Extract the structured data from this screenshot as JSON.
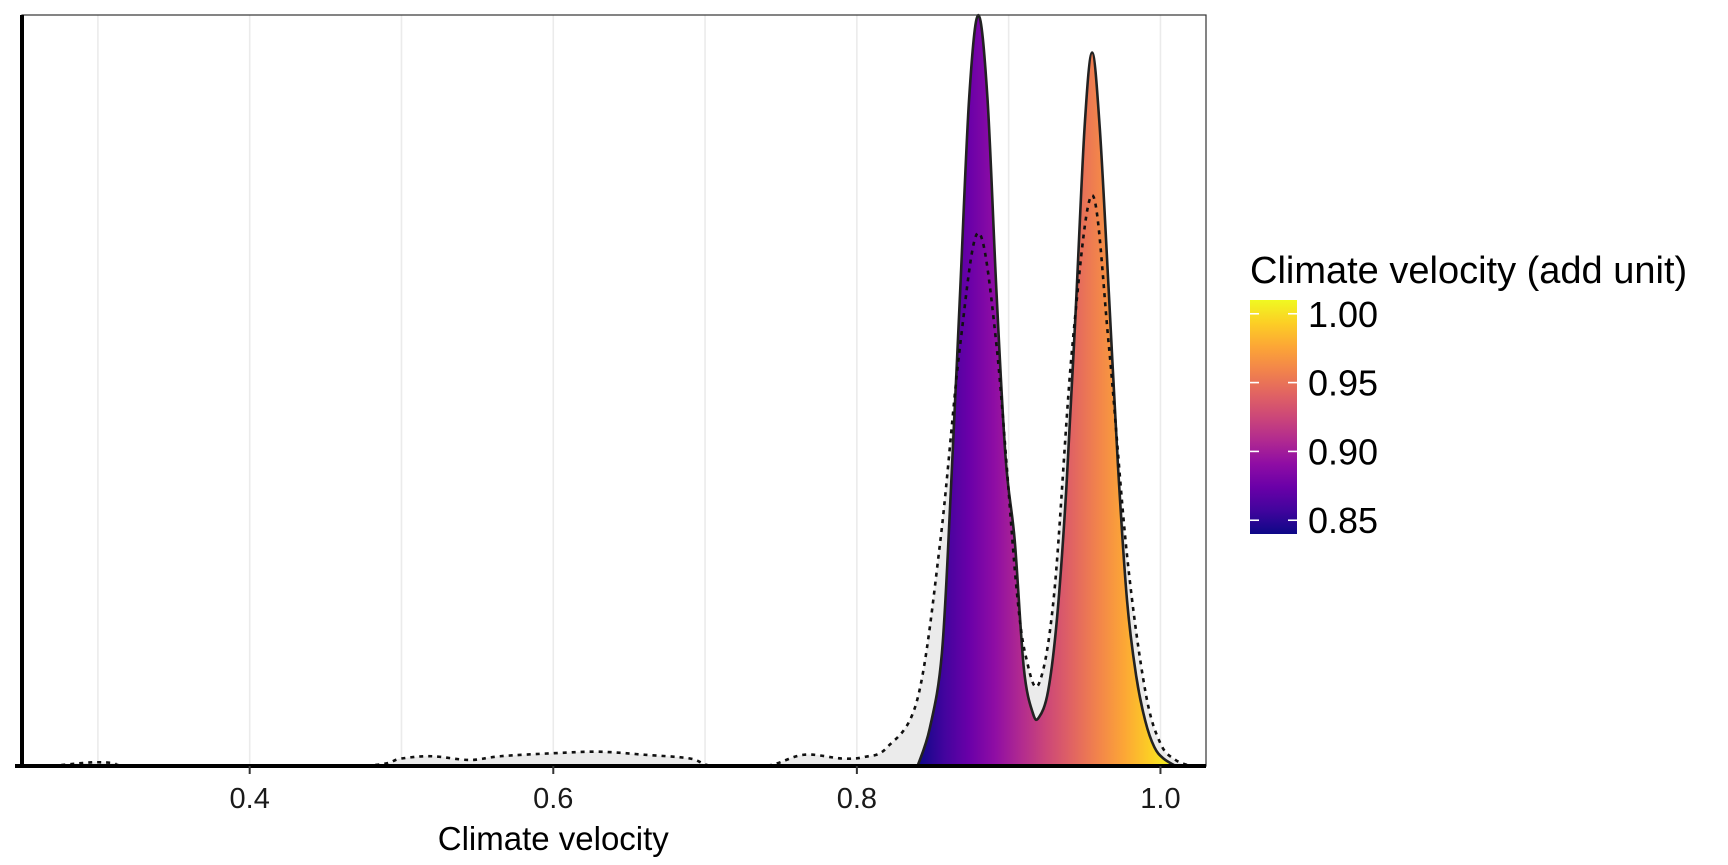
{
  "chart_data": {
    "type": "area",
    "xlabel": "Climate velocity",
    "ylabel": "",
    "xlim": [
      0.25,
      1.03
    ],
    "ylim": [
      0,
      1
    ],
    "x_ticks": [
      0.4,
      0.6,
      0.8,
      1.0
    ],
    "x_tick_labels": [
      "0.4",
      "0.6",
      "0.8",
      "1.0"
    ],
    "grid": "vertical",
    "series": [
      {
        "style": "filled-gradient-solid-outline",
        "x_range": [
          0.84,
          1.01
        ],
        "points": [
          {
            "x": 0.84,
            "y": 0.0
          },
          {
            "x": 0.848,
            "y": 0.05
          },
          {
            "x": 0.856,
            "y": 0.15
          },
          {
            "x": 0.862,
            "y": 0.37
          },
          {
            "x": 0.868,
            "y": 0.63
          },
          {
            "x": 0.874,
            "y": 0.89
          },
          {
            "x": 0.88,
            "y": 1.0
          },
          {
            "x": 0.886,
            "y": 0.89
          },
          {
            "x": 0.892,
            "y": 0.63
          },
          {
            "x": 0.898,
            "y": 0.41
          },
          {
            "x": 0.904,
            "y": 0.3
          },
          {
            "x": 0.91,
            "y": 0.13
          },
          {
            "x": 0.916,
            "y": 0.07
          },
          {
            "x": 0.92,
            "y": 0.065
          },
          {
            "x": 0.926,
            "y": 0.1
          },
          {
            "x": 0.932,
            "y": 0.2
          },
          {
            "x": 0.938,
            "y": 0.37
          },
          {
            "x": 0.944,
            "y": 0.6
          },
          {
            "x": 0.95,
            "y": 0.85
          },
          {
            "x": 0.955,
            "y": 0.95
          },
          {
            "x": 0.96,
            "y": 0.85
          },
          {
            "x": 0.966,
            "y": 0.63
          },
          {
            "x": 0.972,
            "y": 0.4
          },
          {
            "x": 0.978,
            "y": 0.22
          },
          {
            "x": 0.984,
            "y": 0.12
          },
          {
            "x": 0.99,
            "y": 0.06
          },
          {
            "x": 0.996,
            "y": 0.025
          },
          {
            "x": 1.002,
            "y": 0.01
          },
          {
            "x": 1.01,
            "y": 0.0
          }
        ]
      },
      {
        "style": "dotted-outline-grey-fill",
        "x_range": [
          0.27,
          1.02
        ],
        "points": [
          {
            "x": 0.27,
            "y": 0.0
          },
          {
            "x": 0.29,
            "y": 0.004
          },
          {
            "x": 0.3,
            "y": 0.005
          },
          {
            "x": 0.31,
            "y": 0.004
          },
          {
            "x": 0.33,
            "y": 0.0
          },
          {
            "x": 0.47,
            "y": 0.0
          },
          {
            "x": 0.5,
            "y": 0.01
          },
          {
            "x": 0.52,
            "y": 0.013
          },
          {
            "x": 0.545,
            "y": 0.008
          },
          {
            "x": 0.565,
            "y": 0.013
          },
          {
            "x": 0.6,
            "y": 0.017
          },
          {
            "x": 0.63,
            "y": 0.019
          },
          {
            "x": 0.66,
            "y": 0.015
          },
          {
            "x": 0.69,
            "y": 0.01
          },
          {
            "x": 0.705,
            "y": 0.0
          },
          {
            "x": 0.74,
            "y": 0.0
          },
          {
            "x": 0.765,
            "y": 0.015
          },
          {
            "x": 0.79,
            "y": 0.01
          },
          {
            "x": 0.805,
            "y": 0.012
          },
          {
            "x": 0.82,
            "y": 0.025
          },
          {
            "x": 0.84,
            "y": 0.09
          },
          {
            "x": 0.855,
            "y": 0.3
          },
          {
            "x": 0.868,
            "y": 0.56
          },
          {
            "x": 0.88,
            "y": 0.71
          },
          {
            "x": 0.892,
            "y": 0.56
          },
          {
            "x": 0.905,
            "y": 0.24
          },
          {
            "x": 0.912,
            "y": 0.14
          },
          {
            "x": 0.92,
            "y": 0.11
          },
          {
            "x": 0.93,
            "y": 0.23
          },
          {
            "x": 0.942,
            "y": 0.56
          },
          {
            "x": 0.955,
            "y": 0.76
          },
          {
            "x": 0.966,
            "y": 0.56
          },
          {
            "x": 0.978,
            "y": 0.28
          },
          {
            "x": 0.99,
            "y": 0.1
          },
          {
            "x": 1.0,
            "y": 0.03
          },
          {
            "x": 1.01,
            "y": 0.008
          },
          {
            "x": 1.02,
            "y": 0.0
          }
        ]
      }
    ],
    "legend": {
      "title": "Climate velocity (add unit)",
      "placement": "right",
      "type": "colorbar",
      "colormap": "plasma",
      "range": [
        0.84,
        1.01
      ],
      "ticks": [
        0.85,
        0.9,
        0.95,
        1.0
      ],
      "tick_labels": [
        "0.85",
        "0.90",
        "0.95",
        "1.00"
      ]
    }
  },
  "colors": {
    "plasma_stops": [
      "#0d0887",
      "#41049d",
      "#6a00a8",
      "#8f0da4",
      "#b12a90",
      "#cc4778",
      "#e16462",
      "#f2844b",
      "#fca636",
      "#fcce25",
      "#f0f921"
    ],
    "grey_fill": "#ebebeb",
    "grid": "#ebebeb",
    "panel_border": "#333333",
    "axis_line": "#000000"
  }
}
